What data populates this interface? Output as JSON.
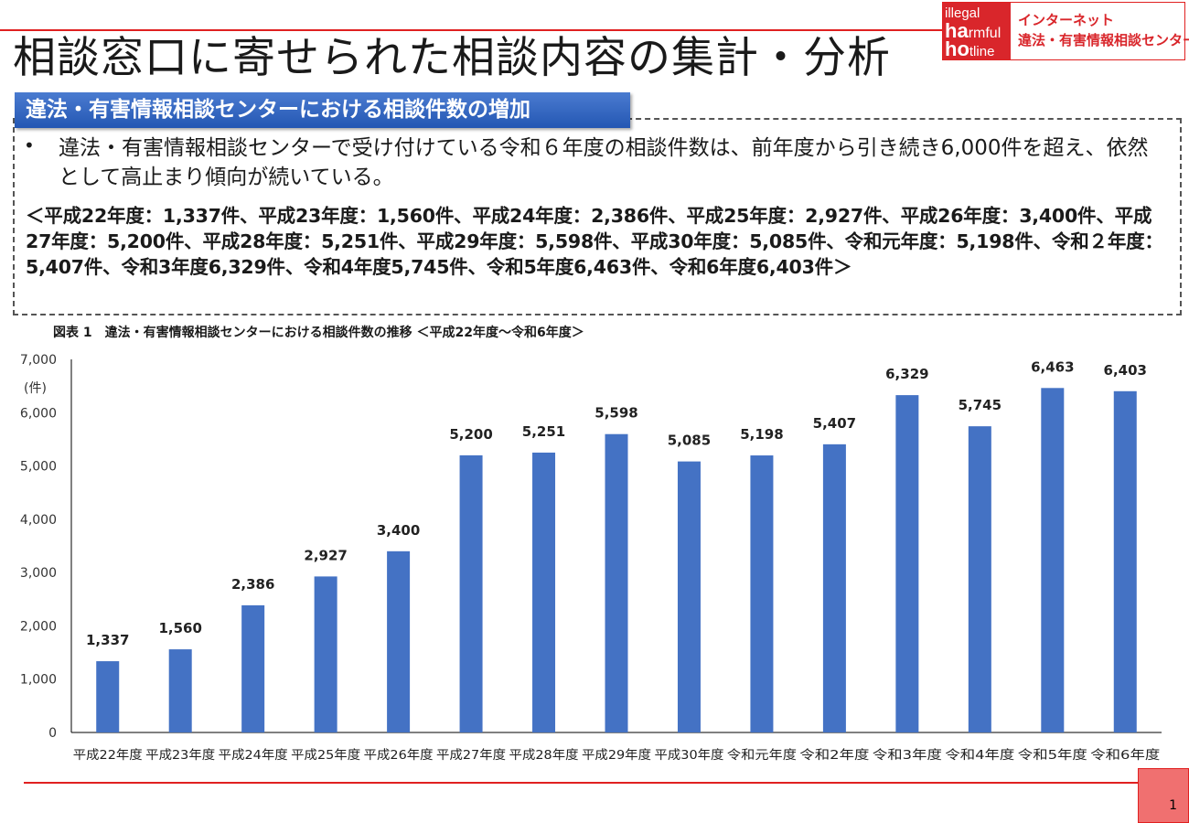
{
  "header": {
    "title": "相談窓口に寄せられた相談内容の集計・分析"
  },
  "logo": {
    "mark_line1": "illegal",
    "mark_line2_bold": "ha",
    "mark_line2": "rmful",
    "mark_line3_bold": "ho",
    "mark_line3": "tline",
    "name_line1": "インターネット",
    "name_line2": "違法・有害情報相談センター"
  },
  "section": {
    "subtitle": "違法・有害情報相談センターにおける相談件数の増加",
    "bullet_symbol": "•",
    "bullet_text": "違法・有害情報相談センターで受け付けている令和６年度の相談件数は、前年度から引き続き6,000件を超え、依然として高止まり傾向が続いている。",
    "detail_text": "＜平成22年度：1,337件、平成23年度：1,560件、平成24年度：2,386件、平成25年度：2,927件、平成26年度：3,400件、平成27年度：5,200件、平成28年度：5,251件、平成29年度：5,598件、平成30年度：5,085件、令和元年度：5,198件、令和２年度：5,407件、令和3年度6,329件、令和4年度5,745件、令和5年度6,463件、令和6年度6,403件＞"
  },
  "figure_caption": "図表 1　違法・有害情報相談センターにおける相談件数の推移 ＜平成22年度～令和6年度＞",
  "chart_data": {
    "type": "bar",
    "title": "",
    "xlabel": "",
    "ylabel": "(件)",
    "categories": [
      "平成22年度",
      "平成23年度",
      "平成24年度",
      "平成25年度",
      "平成26年度",
      "平成27年度",
      "平成28年度",
      "平成29年度",
      "平成30年度",
      "令和元年度",
      "令和2年度",
      "令和3年度",
      "令和4年度",
      "令和5年度",
      "令和6年度"
    ],
    "values": [
      1337,
      1560,
      2386,
      2927,
      3400,
      5200,
      5251,
      5598,
      5085,
      5198,
      5407,
      6329,
      5745,
      6463,
      6403
    ],
    "value_labels": [
      "1,337",
      "1,560",
      "2,386",
      "2,927",
      "3,400",
      "5,200",
      "5,251",
      "5,598",
      "5,085",
      "5,198",
      "5,407",
      "6,329",
      "5,745",
      "6,463",
      "6,403"
    ],
    "y_ticks": [
      0,
      1000,
      2000,
      3000,
      4000,
      5000,
      6000,
      7000
    ],
    "y_tick_labels": [
      "0",
      "1,000",
      "2,000",
      "3,000",
      "4,000",
      "5,000",
      "6,000",
      "7,000"
    ],
    "ylim": [
      0,
      7000
    ],
    "bar_color": "#4472c4",
    "grid": false,
    "legend": "none"
  },
  "footer": {
    "page_number": "1"
  },
  "colors": {
    "accent_red": "#e02020",
    "subtitle_blue": "#2f5fb8",
    "bar_blue": "#4472c4"
  }
}
